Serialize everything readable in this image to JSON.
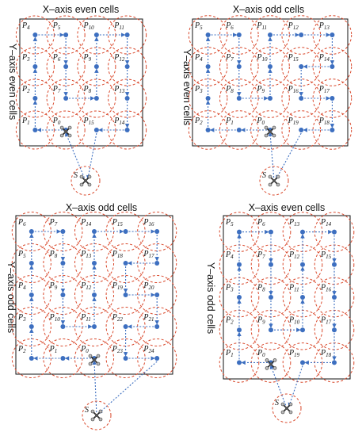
{
  "panels": [
    {
      "id": "top-left",
      "x_title": "X–axis even cells",
      "y_title": "Y–axis even cells",
      "cols": 4,
      "rows": 4,
      "labels": [
        "P4",
        "P5",
        "P10",
        "P11",
        "P3",
        "P6",
        "P9",
        "P12",
        "P2",
        "P7",
        "P8",
        "P13",
        "P1",
        "P0",
        "P15",
        "P14"
      ],
      "start_label": "S"
    },
    {
      "id": "top-right",
      "x_title": "X–axis odd cells",
      "y_title": "Y–axis even cells",
      "cols": 5,
      "rows": 4,
      "labels": [
        "P5",
        "P6",
        "P11",
        "P12",
        "P13",
        "P4",
        "P7",
        "P10",
        "P15",
        "P14",
        "P3",
        "P8",
        "P9",
        "P16",
        "P17",
        "P2",
        "P1",
        "P0",
        "P19",
        "P18"
      ],
      "start_label": "S"
    },
    {
      "id": "bottom-left",
      "x_title": "X–axis odd cells",
      "y_title": "Y–axis odd cells",
      "cols": 5,
      "rows": 5,
      "labels": [
        "P6",
        "P7",
        "P14",
        "P15",
        "P16",
        "P5",
        "P8",
        "P13",
        "P18",
        "P17",
        "P4",
        "P9",
        "P12",
        "P19",
        "P20",
        "P3",
        "P10",
        "P11",
        "P22",
        "P21",
        "P2",
        "P1",
        "P0",
        "P23",
        "P24"
      ],
      "start_label": "S"
    },
    {
      "id": "bottom-right",
      "x_title": "X–axis even cells",
      "y_title": "Y–axis odd cells",
      "cols": 4,
      "rows": 5,
      "labels": [
        "P5",
        "P6",
        "P13",
        "P14",
        "P4",
        "P7",
        "P12",
        "P15",
        "P3",
        "P8",
        "P11",
        "P16",
        "P2",
        "P9",
        "P10",
        "P17",
        "P1",
        "P0",
        "P19",
        "P18"
      ],
      "start_label": "S"
    }
  ],
  "colors": {
    "node": "#3d6fc0",
    "path": "#3d6fc0",
    "circle": "#d9482b",
    "frame": "#111111",
    "title": "#111111"
  }
}
